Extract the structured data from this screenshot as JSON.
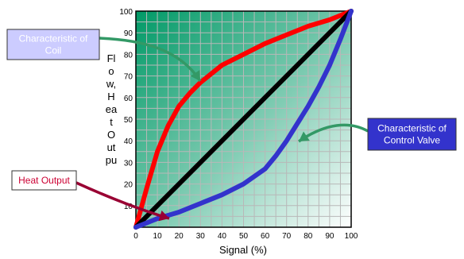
{
  "chart_data": {
    "type": "line",
    "xlabel": "Signal (%)",
    "ylabel_lines": [
      "Fl",
      "o",
      "w,",
      "H",
      "ea",
      "t",
      "O",
      "ut",
      "pu"
    ],
    "xlim": [
      0,
      100
    ],
    "ylim": [
      0,
      100
    ],
    "x_ticks": [
      0,
      10,
      20,
      30,
      40,
      50,
      60,
      70,
      80,
      90,
      100
    ],
    "y_ticks": [
      10,
      20,
      30,
      40,
      50,
      60,
      70,
      80,
      90,
      100
    ],
    "grid": true,
    "series": [
      {
        "color": "#ff0000",
        "x": [
          0,
          5,
          10,
          15,
          20,
          25,
          30,
          40,
          50,
          60,
          70,
          80,
          90,
          100
        ],
        "y": [
          0,
          18,
          35,
          47,
          56,
          62,
          67,
          75,
          80,
          85,
          89,
          93,
          96,
          100
        ]
      },
      {
        "color": "#000000",
        "x": [
          0,
          100
        ],
        "y": [
          0,
          100
        ]
      },
      {
        "color": "#3333cc",
        "x": [
          0,
          10,
          20,
          30,
          40,
          50,
          60,
          65,
          70,
          75,
          80,
          85,
          90,
          95,
          100
        ],
        "y": [
          0,
          4,
          7,
          11,
          15,
          20,
          27,
          33,
          40,
          48,
          56,
          65,
          75,
          87,
          100
        ]
      }
    ],
    "annotations": [
      {
        "text": [
          "Characteristic of",
          "Coil"
        ],
        "bg": "#ccccff",
        "fg": "#ffffff",
        "arrow_color": "#339966"
      },
      {
        "text": [
          "Heat Output"
        ],
        "bg": "#ffffff",
        "fg": "#cc0033",
        "arrow_color": "#990033"
      },
      {
        "text": [
          "Characteristic of",
          "Control Valve"
        ],
        "bg": "#3333cc",
        "fg": "#ffffff",
        "arrow_color": "#339966"
      }
    ]
  }
}
